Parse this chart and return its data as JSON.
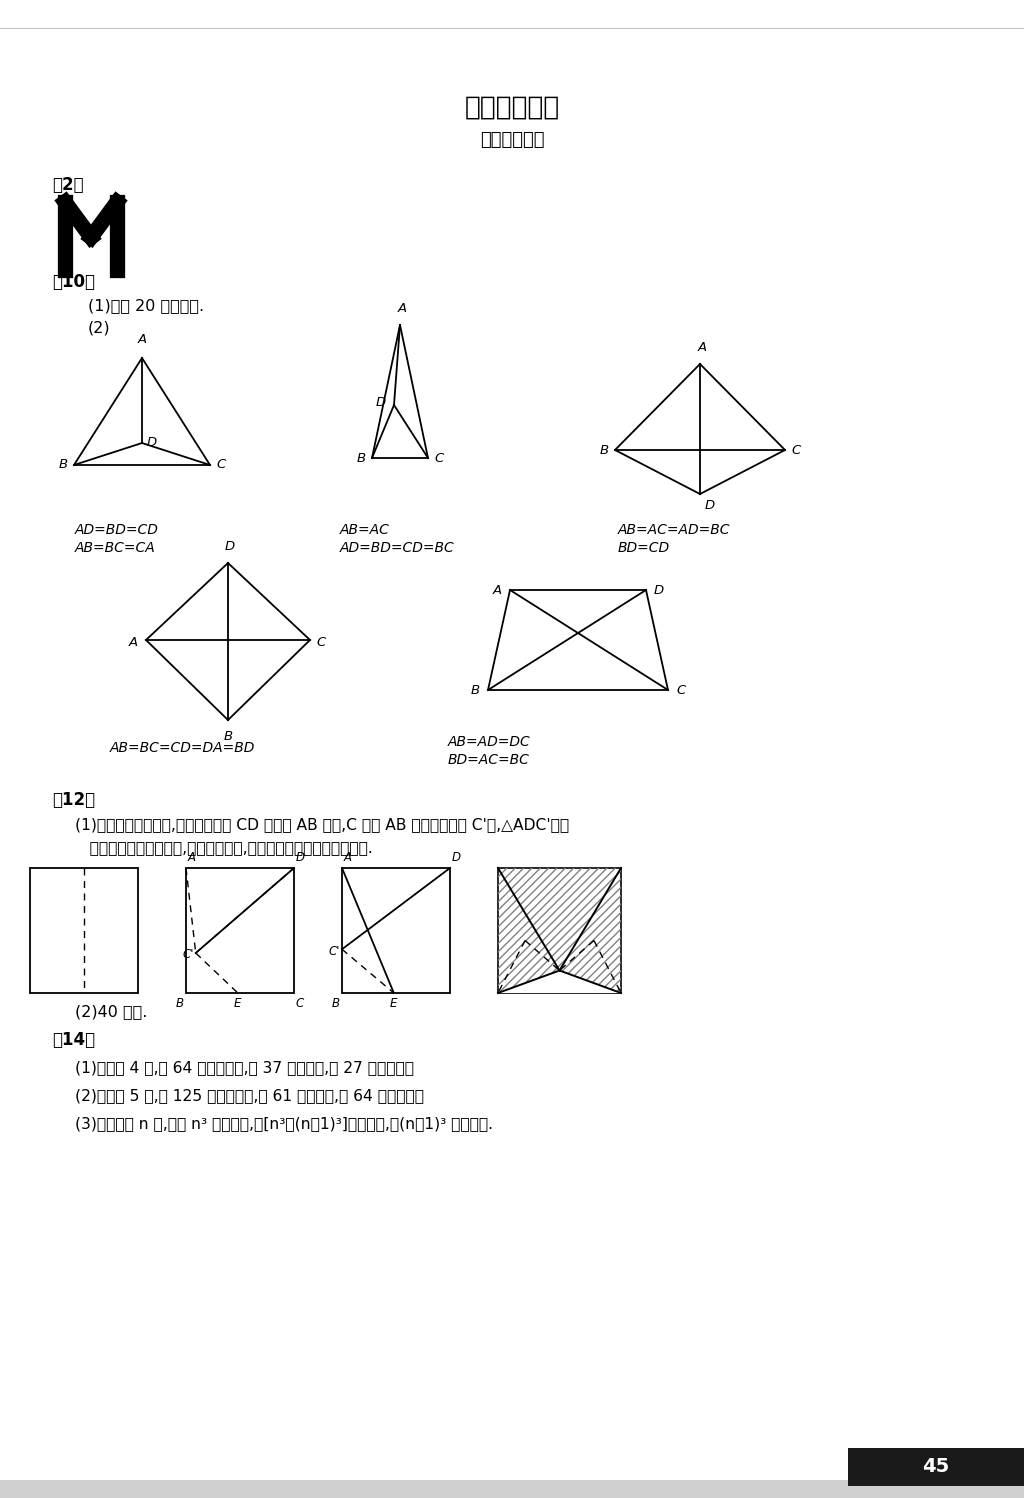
{
  "title": "部分参考答案",
  "subtitle": "（数学园地）",
  "page_bg": "#ffffff",
  "text_color": "#000000",
  "sec2_header": "第2页",
  "sec10_header": "第10页",
  "sec12_header": "第12页",
  "sec14_header": "第14页",
  "line10_1": "(1)共有 20 个正方形.",
  "line10_2": "(2)",
  "fig1_eq1": "AD=BD=CD",
  "fig1_eq2": "AB=BC=CA",
  "fig2_eq1": "AB=AC",
  "fig2_eq2": "AD=BD=CD=BC",
  "fig3_eq1": "AB=AC=AD=BC",
  "fig3_eq2": "BD=CD",
  "fig4_eq1": "AB=BC=CD=DA=BD",
  "fig5_eq1": "AB=AD=DC",
  "fig5_eq2": "BD=AC=BC",
  "sec12_t1": "(1)先将正方形纸对折,再将叠住的边 CD 斜着向 AB 对折,C 叠在 AB 上的对应点为 C'点,△ADC'就是",
  "sec12_t2": "   所求等边三角形的一半,最后将纸摊开,就可得一个最大的等边三角形.",
  "sec12_l2": "(2)40 分钟.",
  "sec14_l1": "(1)边长为 4 时,有 64 个小立方体,有 37 个看得见,有 27 个看不见；",
  "sec14_l2": "(2)边长为 5 时,有 125 个小立方体,有 61 个看得见,有 64 个看不见；",
  "sec14_l3": "(3)当边长为 n 时,共有 n³ 个小立体,有[n³－(n－1)³]个看得见,有(n－1)³ 个看不见.",
  "page_num": "45"
}
